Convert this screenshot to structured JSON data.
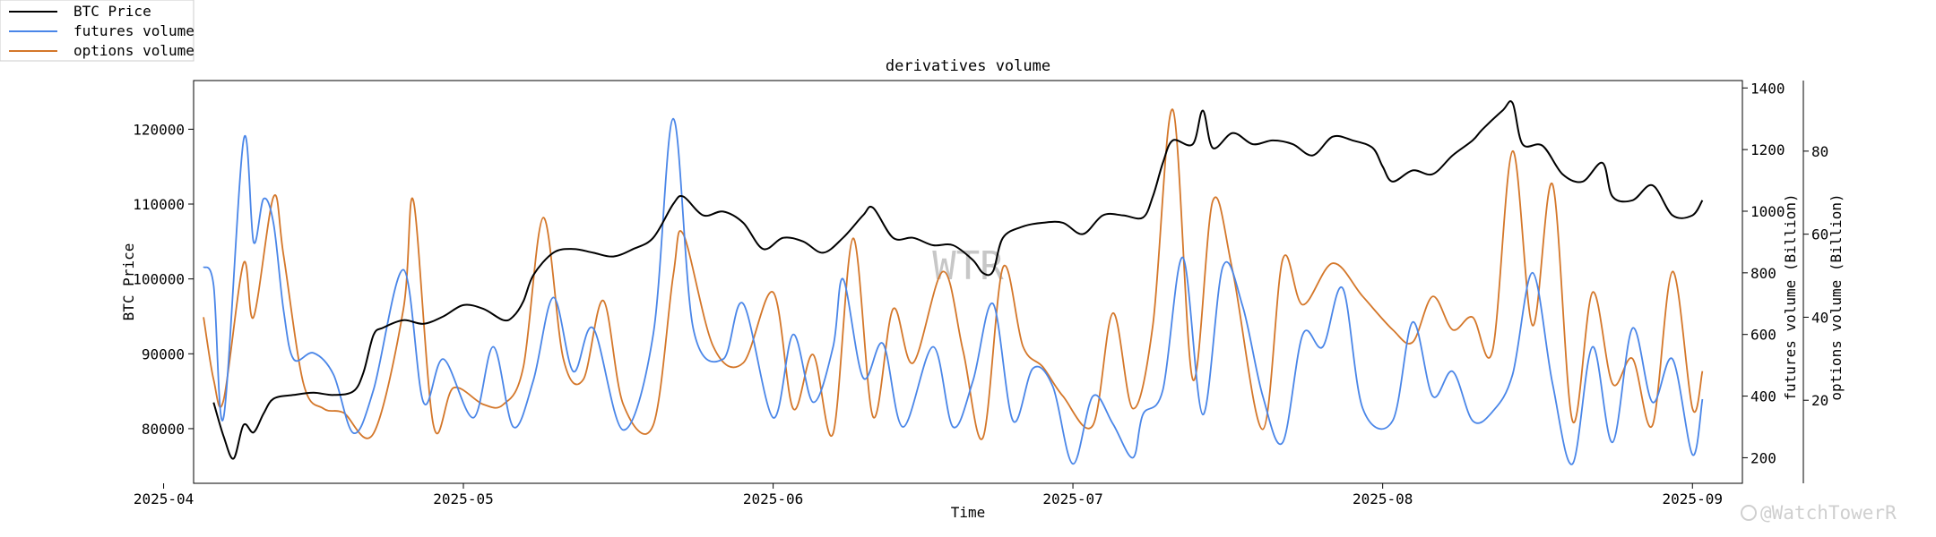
{
  "chart_data": {
    "type": "line",
    "title": "derivatives volume",
    "xlabel": "Time",
    "ylabel_left": "BTC Price",
    "ylabel_right1": "futures volume (Billion)",
    "ylabel_right2": "options volume (Billion)",
    "x_range": [
      "2025-04-04",
      "2025-09-06"
    ],
    "x_ticks": [
      "2025-04",
      "2025-05",
      "2025-06",
      "2025-07",
      "2025-08",
      "2025-09"
    ],
    "y_left": {
      "range": [
        72700,
        126500
      ],
      "ticks": [
        80000,
        90000,
        100000,
        110000,
        120000
      ]
    },
    "y_right1": {
      "range": [
        117,
        1424
      ],
      "ticks": [
        200,
        400,
        600,
        800,
        1000,
        1200,
        1400
      ]
    },
    "y_right2": {
      "range": [
        0,
        97
      ],
      "ticks": [
        20,
        40,
        60,
        80
      ]
    },
    "legend": {
      "location": "top-left",
      "entries": [
        "BTC Price",
        "futures volume",
        "options volume"
      ]
    },
    "watermark": "WTR",
    "corner_mark": "@WatchTowerR",
    "series": [
      {
        "name": "BTC Price",
        "axis": "left",
        "color": "#000000",
        "points": [
          [
            "2025-04-06",
            83500
          ],
          [
            "2025-04-07",
            79000
          ],
          [
            "2025-04-08",
            76000
          ],
          [
            "2025-04-09",
            80500
          ],
          [
            "2025-04-10",
            79500
          ],
          [
            "2025-04-11",
            82000
          ],
          [
            "2025-04-12",
            84000
          ],
          [
            "2025-04-14",
            84500
          ],
          [
            "2025-04-16",
            84800
          ],
          [
            "2025-04-18",
            84500
          ],
          [
            "2025-04-20",
            85000
          ],
          [
            "2025-04-21",
            87500
          ],
          [
            "2025-04-22",
            92500
          ],
          [
            "2025-04-23",
            93500
          ],
          [
            "2025-04-25",
            94500
          ],
          [
            "2025-04-27",
            94000
          ],
          [
            "2025-04-29",
            95000
          ],
          [
            "2025-05-01",
            96500
          ],
          [
            "2025-05-03",
            96000
          ],
          [
            "2025-05-05",
            94500
          ],
          [
            "2025-05-06",
            95000
          ],
          [
            "2025-05-07",
            97000
          ],
          [
            "2025-05-08",
            100500
          ],
          [
            "2025-05-10",
            103500
          ],
          [
            "2025-05-12",
            104000
          ],
          [
            "2025-05-14",
            103500
          ],
          [
            "2025-05-16",
            103000
          ],
          [
            "2025-05-18",
            104000
          ],
          [
            "2025-05-20",
            105500
          ],
          [
            "2025-05-22",
            110000
          ],
          [
            "2025-05-23",
            111000
          ],
          [
            "2025-05-25",
            108500
          ],
          [
            "2025-05-27",
            109000
          ],
          [
            "2025-05-29",
            107500
          ],
          [
            "2025-05-31",
            104000
          ],
          [
            "2025-06-02",
            105500
          ],
          [
            "2025-06-04",
            105000
          ],
          [
            "2025-06-06",
            103500
          ],
          [
            "2025-06-08",
            105500
          ],
          [
            "2025-06-10",
            108500
          ],
          [
            "2025-06-11",
            109500
          ],
          [
            "2025-06-13",
            105500
          ],
          [
            "2025-06-15",
            105500
          ],
          [
            "2025-06-17",
            104500
          ],
          [
            "2025-06-19",
            104500
          ],
          [
            "2025-06-21",
            102500
          ],
          [
            "2025-06-22",
            100800
          ],
          [
            "2025-06-23",
            101000
          ],
          [
            "2025-06-24",
            105500
          ],
          [
            "2025-06-26",
            107000
          ],
          [
            "2025-06-28",
            107500
          ],
          [
            "2025-06-30",
            107500
          ],
          [
            "2025-07-02",
            106000
          ],
          [
            "2025-07-04",
            108500
          ],
          [
            "2025-07-06",
            108500
          ],
          [
            "2025-07-08",
            108200
          ],
          [
            "2025-07-09",
            111000
          ],
          [
            "2025-07-10",
            115500
          ],
          [
            "2025-07-11",
            118500
          ],
          [
            "2025-07-13",
            118000
          ],
          [
            "2025-07-14",
            122500
          ],
          [
            "2025-07-15",
            117500
          ],
          [
            "2025-07-17",
            119500
          ],
          [
            "2025-07-19",
            118000
          ],
          [
            "2025-07-21",
            118500
          ],
          [
            "2025-07-23",
            118000
          ],
          [
            "2025-07-25",
            116500
          ],
          [
            "2025-07-27",
            119000
          ],
          [
            "2025-07-29",
            118500
          ],
          [
            "2025-07-31",
            117500
          ],
          [
            "2025-08-01",
            115000
          ],
          [
            "2025-08-02",
            113000
          ],
          [
            "2025-08-04",
            114500
          ],
          [
            "2025-08-06",
            114000
          ],
          [
            "2025-08-08",
            116500
          ],
          [
            "2025-08-10",
            118500
          ],
          [
            "2025-08-11",
            120000
          ],
          [
            "2025-08-13",
            122500
          ],
          [
            "2025-08-14",
            123500
          ],
          [
            "2025-08-15",
            118000
          ],
          [
            "2025-08-17",
            117800
          ],
          [
            "2025-08-19",
            114000
          ],
          [
            "2025-08-21",
            113000
          ],
          [
            "2025-08-23",
            115500
          ],
          [
            "2025-08-24",
            111000
          ],
          [
            "2025-08-26",
            110500
          ],
          [
            "2025-08-28",
            112500
          ],
          [
            "2025-08-30",
            108500
          ],
          [
            "2025-09-01",
            108500
          ],
          [
            "2025-09-02",
            110500
          ]
        ]
      },
      {
        "name": "futures volume",
        "axis": "right1",
        "color": "#4a86e8",
        "points": [
          [
            "2025-04-05",
            820
          ],
          [
            "2025-04-06",
            760
          ],
          [
            "2025-04-07",
            330
          ],
          [
            "2025-04-09",
            1230
          ],
          [
            "2025-04-10",
            900
          ],
          [
            "2025-04-11",
            1040
          ],
          [
            "2025-04-12",
            960
          ],
          [
            "2025-04-13",
            680
          ],
          [
            "2025-04-14",
            520
          ],
          [
            "2025-04-16",
            540
          ],
          [
            "2025-04-18",
            470
          ],
          [
            "2025-04-20",
            280
          ],
          [
            "2025-04-22",
            420
          ],
          [
            "2025-04-25",
            810
          ],
          [
            "2025-04-27",
            380
          ],
          [
            "2025-04-29",
            520
          ],
          [
            "2025-05-02",
            330
          ],
          [
            "2025-05-04",
            560
          ],
          [
            "2025-05-06",
            300
          ],
          [
            "2025-05-08",
            450
          ],
          [
            "2025-05-10",
            720
          ],
          [
            "2025-05-12",
            480
          ],
          [
            "2025-05-14",
            620
          ],
          [
            "2025-05-17",
            290
          ],
          [
            "2025-05-20",
            600
          ],
          [
            "2025-05-22",
            1300
          ],
          [
            "2025-05-24",
            620
          ],
          [
            "2025-05-27",
            520
          ],
          [
            "2025-05-29",
            700
          ],
          [
            "2025-06-01",
            330
          ],
          [
            "2025-06-03",
            600
          ],
          [
            "2025-06-05",
            380
          ],
          [
            "2025-06-07",
            560
          ],
          [
            "2025-06-08",
            780
          ],
          [
            "2025-06-10",
            460
          ],
          [
            "2025-06-12",
            570
          ],
          [
            "2025-06-14",
            300
          ],
          [
            "2025-06-17",
            560
          ],
          [
            "2025-06-19",
            300
          ],
          [
            "2025-06-21",
            450
          ],
          [
            "2025-06-23",
            700
          ],
          [
            "2025-06-25",
            320
          ],
          [
            "2025-06-27",
            490
          ],
          [
            "2025-06-29",
            430
          ],
          [
            "2025-07-01",
            180
          ],
          [
            "2025-07-03",
            400
          ],
          [
            "2025-07-05",
            310
          ],
          [
            "2025-07-07",
            200
          ],
          [
            "2025-07-08",
            340
          ],
          [
            "2025-07-10",
            420
          ],
          [
            "2025-07-12",
            850
          ],
          [
            "2025-07-14",
            340
          ],
          [
            "2025-07-16",
            820
          ],
          [
            "2025-07-18",
            690
          ],
          [
            "2025-07-20",
            400
          ],
          [
            "2025-07-22",
            250
          ],
          [
            "2025-07-24",
            600
          ],
          [
            "2025-07-26",
            560
          ],
          [
            "2025-07-28",
            750
          ],
          [
            "2025-07-30",
            360
          ],
          [
            "2025-08-02",
            320
          ],
          [
            "2025-08-04",
            640
          ],
          [
            "2025-08-06",
            400
          ],
          [
            "2025-08-08",
            480
          ],
          [
            "2025-08-10",
            320
          ],
          [
            "2025-08-12",
            350
          ],
          [
            "2025-08-14",
            470
          ],
          [
            "2025-08-16",
            800
          ],
          [
            "2025-08-18",
            440
          ],
          [
            "2025-08-20",
            180
          ],
          [
            "2025-08-22",
            560
          ],
          [
            "2025-08-24",
            250
          ],
          [
            "2025-08-26",
            620
          ],
          [
            "2025-08-28",
            380
          ],
          [
            "2025-08-30",
            520
          ],
          [
            "2025-09-01",
            210
          ],
          [
            "2025-09-02",
            390
          ]
        ]
      },
      {
        "name": "options volume",
        "axis": "right2",
        "color": "#d4772a",
        "points": [
          [
            "2025-04-05",
            40
          ],
          [
            "2025-04-06",
            25
          ],
          [
            "2025-04-07",
            20
          ],
          [
            "2025-04-09",
            53
          ],
          [
            "2025-04-10",
            40
          ],
          [
            "2025-04-12",
            69
          ],
          [
            "2025-04-13",
            55
          ],
          [
            "2025-04-15",
            24
          ],
          [
            "2025-04-17",
            18
          ],
          [
            "2025-04-19",
            17
          ],
          [
            "2025-04-22",
            12
          ],
          [
            "2025-04-25",
            42
          ],
          [
            "2025-04-26",
            68
          ],
          [
            "2025-04-28",
            14
          ],
          [
            "2025-04-30",
            23
          ],
          [
            "2025-05-03",
            19
          ],
          [
            "2025-05-05",
            19
          ],
          [
            "2025-05-07",
            28
          ],
          [
            "2025-05-09",
            64
          ],
          [
            "2025-05-11",
            30
          ],
          [
            "2025-05-13",
            25
          ],
          [
            "2025-05-15",
            44
          ],
          [
            "2025-05-17",
            19
          ],
          [
            "2025-05-20",
            14
          ],
          [
            "2025-05-22",
            50
          ],
          [
            "2025-05-23",
            60
          ],
          [
            "2025-05-26",
            33
          ],
          [
            "2025-05-29",
            29
          ],
          [
            "2025-06-01",
            46
          ],
          [
            "2025-06-03",
            18
          ],
          [
            "2025-06-05",
            31
          ],
          [
            "2025-06-07",
            12
          ],
          [
            "2025-06-09",
            59
          ],
          [
            "2025-06-11",
            16
          ],
          [
            "2025-06-13",
            42
          ],
          [
            "2025-06-15",
            29
          ],
          [
            "2025-06-18",
            51
          ],
          [
            "2025-06-20",
            32
          ],
          [
            "2025-06-22",
            11
          ],
          [
            "2025-06-24",
            52
          ],
          [
            "2025-06-26",
            33
          ],
          [
            "2025-06-28",
            28
          ],
          [
            "2025-06-30",
            21
          ],
          [
            "2025-07-03",
            14
          ],
          [
            "2025-07-05",
            41
          ],
          [
            "2025-07-07",
            18
          ],
          [
            "2025-07-09",
            38
          ],
          [
            "2025-07-11",
            90
          ],
          [
            "2025-07-13",
            25
          ],
          [
            "2025-07-15",
            68
          ],
          [
            "2025-07-17",
            51
          ],
          [
            "2025-07-20",
            13
          ],
          [
            "2025-07-22",
            54
          ],
          [
            "2025-07-24",
            43
          ],
          [
            "2025-07-27",
            53
          ],
          [
            "2025-07-30",
            45
          ],
          [
            "2025-08-02",
            37
          ],
          [
            "2025-08-04",
            34
          ],
          [
            "2025-08-06",
            45
          ],
          [
            "2025-08-08",
            37
          ],
          [
            "2025-08-10",
            40
          ],
          [
            "2025-08-12",
            32
          ],
          [
            "2025-08-14",
            80
          ],
          [
            "2025-08-16",
            38
          ],
          [
            "2025-08-18",
            72
          ],
          [
            "2025-08-20",
            15
          ],
          [
            "2025-08-22",
            46
          ],
          [
            "2025-08-24",
            24
          ],
          [
            "2025-08-26",
            30
          ],
          [
            "2025-08-28",
            14
          ],
          [
            "2025-08-30",
            51
          ],
          [
            "2025-09-01",
            18
          ],
          [
            "2025-09-02",
            27
          ]
        ]
      }
    ]
  }
}
